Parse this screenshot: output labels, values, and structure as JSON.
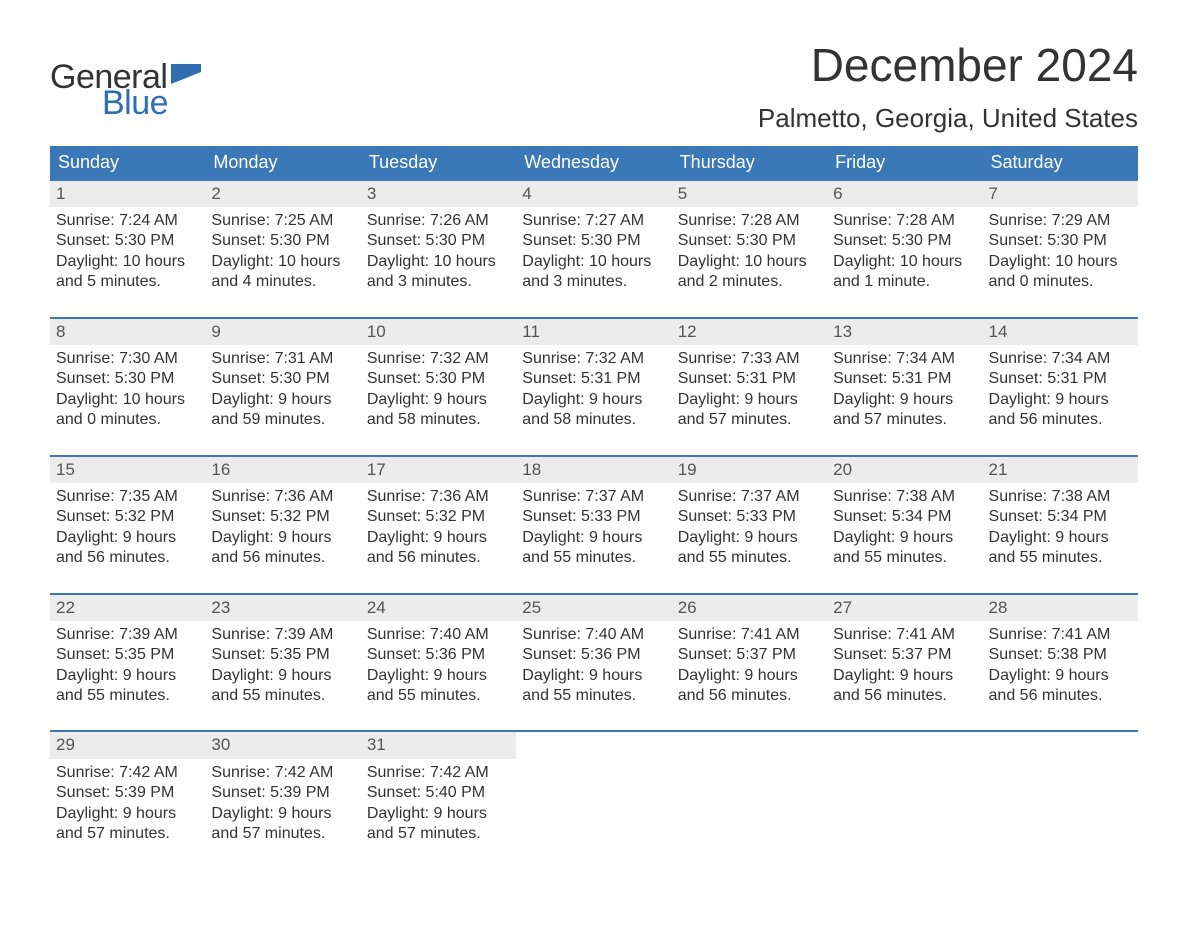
{
  "logo": {
    "word1": "General",
    "word2": "Blue",
    "flag_color": "#2f6fb0"
  },
  "title": "December 2024",
  "location": "Palmetto, Georgia, United States",
  "header_bg": "#3a78b8",
  "header_text_color": "#ffffff",
  "daynum_bg": "#ececec",
  "row_border_color": "#3a78b8",
  "weekdays": [
    "Sunday",
    "Monday",
    "Tuesday",
    "Wednesday",
    "Thursday",
    "Friday",
    "Saturday"
  ],
  "labels": {
    "sunrise": "Sunrise:",
    "sunset": "Sunset:",
    "daylight": "Daylight:"
  },
  "days": [
    {
      "n": 1,
      "sunrise": "7:24 AM",
      "sunset": "5:30 PM",
      "daylight": "10 hours and 5 minutes."
    },
    {
      "n": 2,
      "sunrise": "7:25 AM",
      "sunset": "5:30 PM",
      "daylight": "10 hours and 4 minutes."
    },
    {
      "n": 3,
      "sunrise": "7:26 AM",
      "sunset": "5:30 PM",
      "daylight": "10 hours and 3 minutes."
    },
    {
      "n": 4,
      "sunrise": "7:27 AM",
      "sunset": "5:30 PM",
      "daylight": "10 hours and 3 minutes."
    },
    {
      "n": 5,
      "sunrise": "7:28 AM",
      "sunset": "5:30 PM",
      "daylight": "10 hours and 2 minutes."
    },
    {
      "n": 6,
      "sunrise": "7:28 AM",
      "sunset": "5:30 PM",
      "daylight": "10 hours and 1 minute."
    },
    {
      "n": 7,
      "sunrise": "7:29 AM",
      "sunset": "5:30 PM",
      "daylight": "10 hours and 0 minutes."
    },
    {
      "n": 8,
      "sunrise": "7:30 AM",
      "sunset": "5:30 PM",
      "daylight": "10 hours and 0 minutes."
    },
    {
      "n": 9,
      "sunrise": "7:31 AM",
      "sunset": "5:30 PM",
      "daylight": "9 hours and 59 minutes."
    },
    {
      "n": 10,
      "sunrise": "7:32 AM",
      "sunset": "5:30 PM",
      "daylight": "9 hours and 58 minutes."
    },
    {
      "n": 11,
      "sunrise": "7:32 AM",
      "sunset": "5:31 PM",
      "daylight": "9 hours and 58 minutes."
    },
    {
      "n": 12,
      "sunrise": "7:33 AM",
      "sunset": "5:31 PM",
      "daylight": "9 hours and 57 minutes."
    },
    {
      "n": 13,
      "sunrise": "7:34 AM",
      "sunset": "5:31 PM",
      "daylight": "9 hours and 57 minutes."
    },
    {
      "n": 14,
      "sunrise": "7:34 AM",
      "sunset": "5:31 PM",
      "daylight": "9 hours and 56 minutes."
    },
    {
      "n": 15,
      "sunrise": "7:35 AM",
      "sunset": "5:32 PM",
      "daylight": "9 hours and 56 minutes."
    },
    {
      "n": 16,
      "sunrise": "7:36 AM",
      "sunset": "5:32 PM",
      "daylight": "9 hours and 56 minutes."
    },
    {
      "n": 17,
      "sunrise": "7:36 AM",
      "sunset": "5:32 PM",
      "daylight": "9 hours and 56 minutes."
    },
    {
      "n": 18,
      "sunrise": "7:37 AM",
      "sunset": "5:33 PM",
      "daylight": "9 hours and 55 minutes."
    },
    {
      "n": 19,
      "sunrise": "7:37 AM",
      "sunset": "5:33 PM",
      "daylight": "9 hours and 55 minutes."
    },
    {
      "n": 20,
      "sunrise": "7:38 AM",
      "sunset": "5:34 PM",
      "daylight": "9 hours and 55 minutes."
    },
    {
      "n": 21,
      "sunrise": "7:38 AM",
      "sunset": "5:34 PM",
      "daylight": "9 hours and 55 minutes."
    },
    {
      "n": 22,
      "sunrise": "7:39 AM",
      "sunset": "5:35 PM",
      "daylight": "9 hours and 55 minutes."
    },
    {
      "n": 23,
      "sunrise": "7:39 AM",
      "sunset": "5:35 PM",
      "daylight": "9 hours and 55 minutes."
    },
    {
      "n": 24,
      "sunrise": "7:40 AM",
      "sunset": "5:36 PM",
      "daylight": "9 hours and 55 minutes."
    },
    {
      "n": 25,
      "sunrise": "7:40 AM",
      "sunset": "5:36 PM",
      "daylight": "9 hours and 55 minutes."
    },
    {
      "n": 26,
      "sunrise": "7:41 AM",
      "sunset": "5:37 PM",
      "daylight": "9 hours and 56 minutes."
    },
    {
      "n": 27,
      "sunrise": "7:41 AM",
      "sunset": "5:37 PM",
      "daylight": "9 hours and 56 minutes."
    },
    {
      "n": 28,
      "sunrise": "7:41 AM",
      "sunset": "5:38 PM",
      "daylight": "9 hours and 56 minutes."
    },
    {
      "n": 29,
      "sunrise": "7:42 AM",
      "sunset": "5:39 PM",
      "daylight": "9 hours and 57 minutes."
    },
    {
      "n": 30,
      "sunrise": "7:42 AM",
      "sunset": "5:39 PM",
      "daylight": "9 hours and 57 minutes."
    },
    {
      "n": 31,
      "sunrise": "7:42 AM",
      "sunset": "5:40 PM",
      "daylight": "9 hours and 57 minutes."
    }
  ],
  "first_weekday_index": 0
}
